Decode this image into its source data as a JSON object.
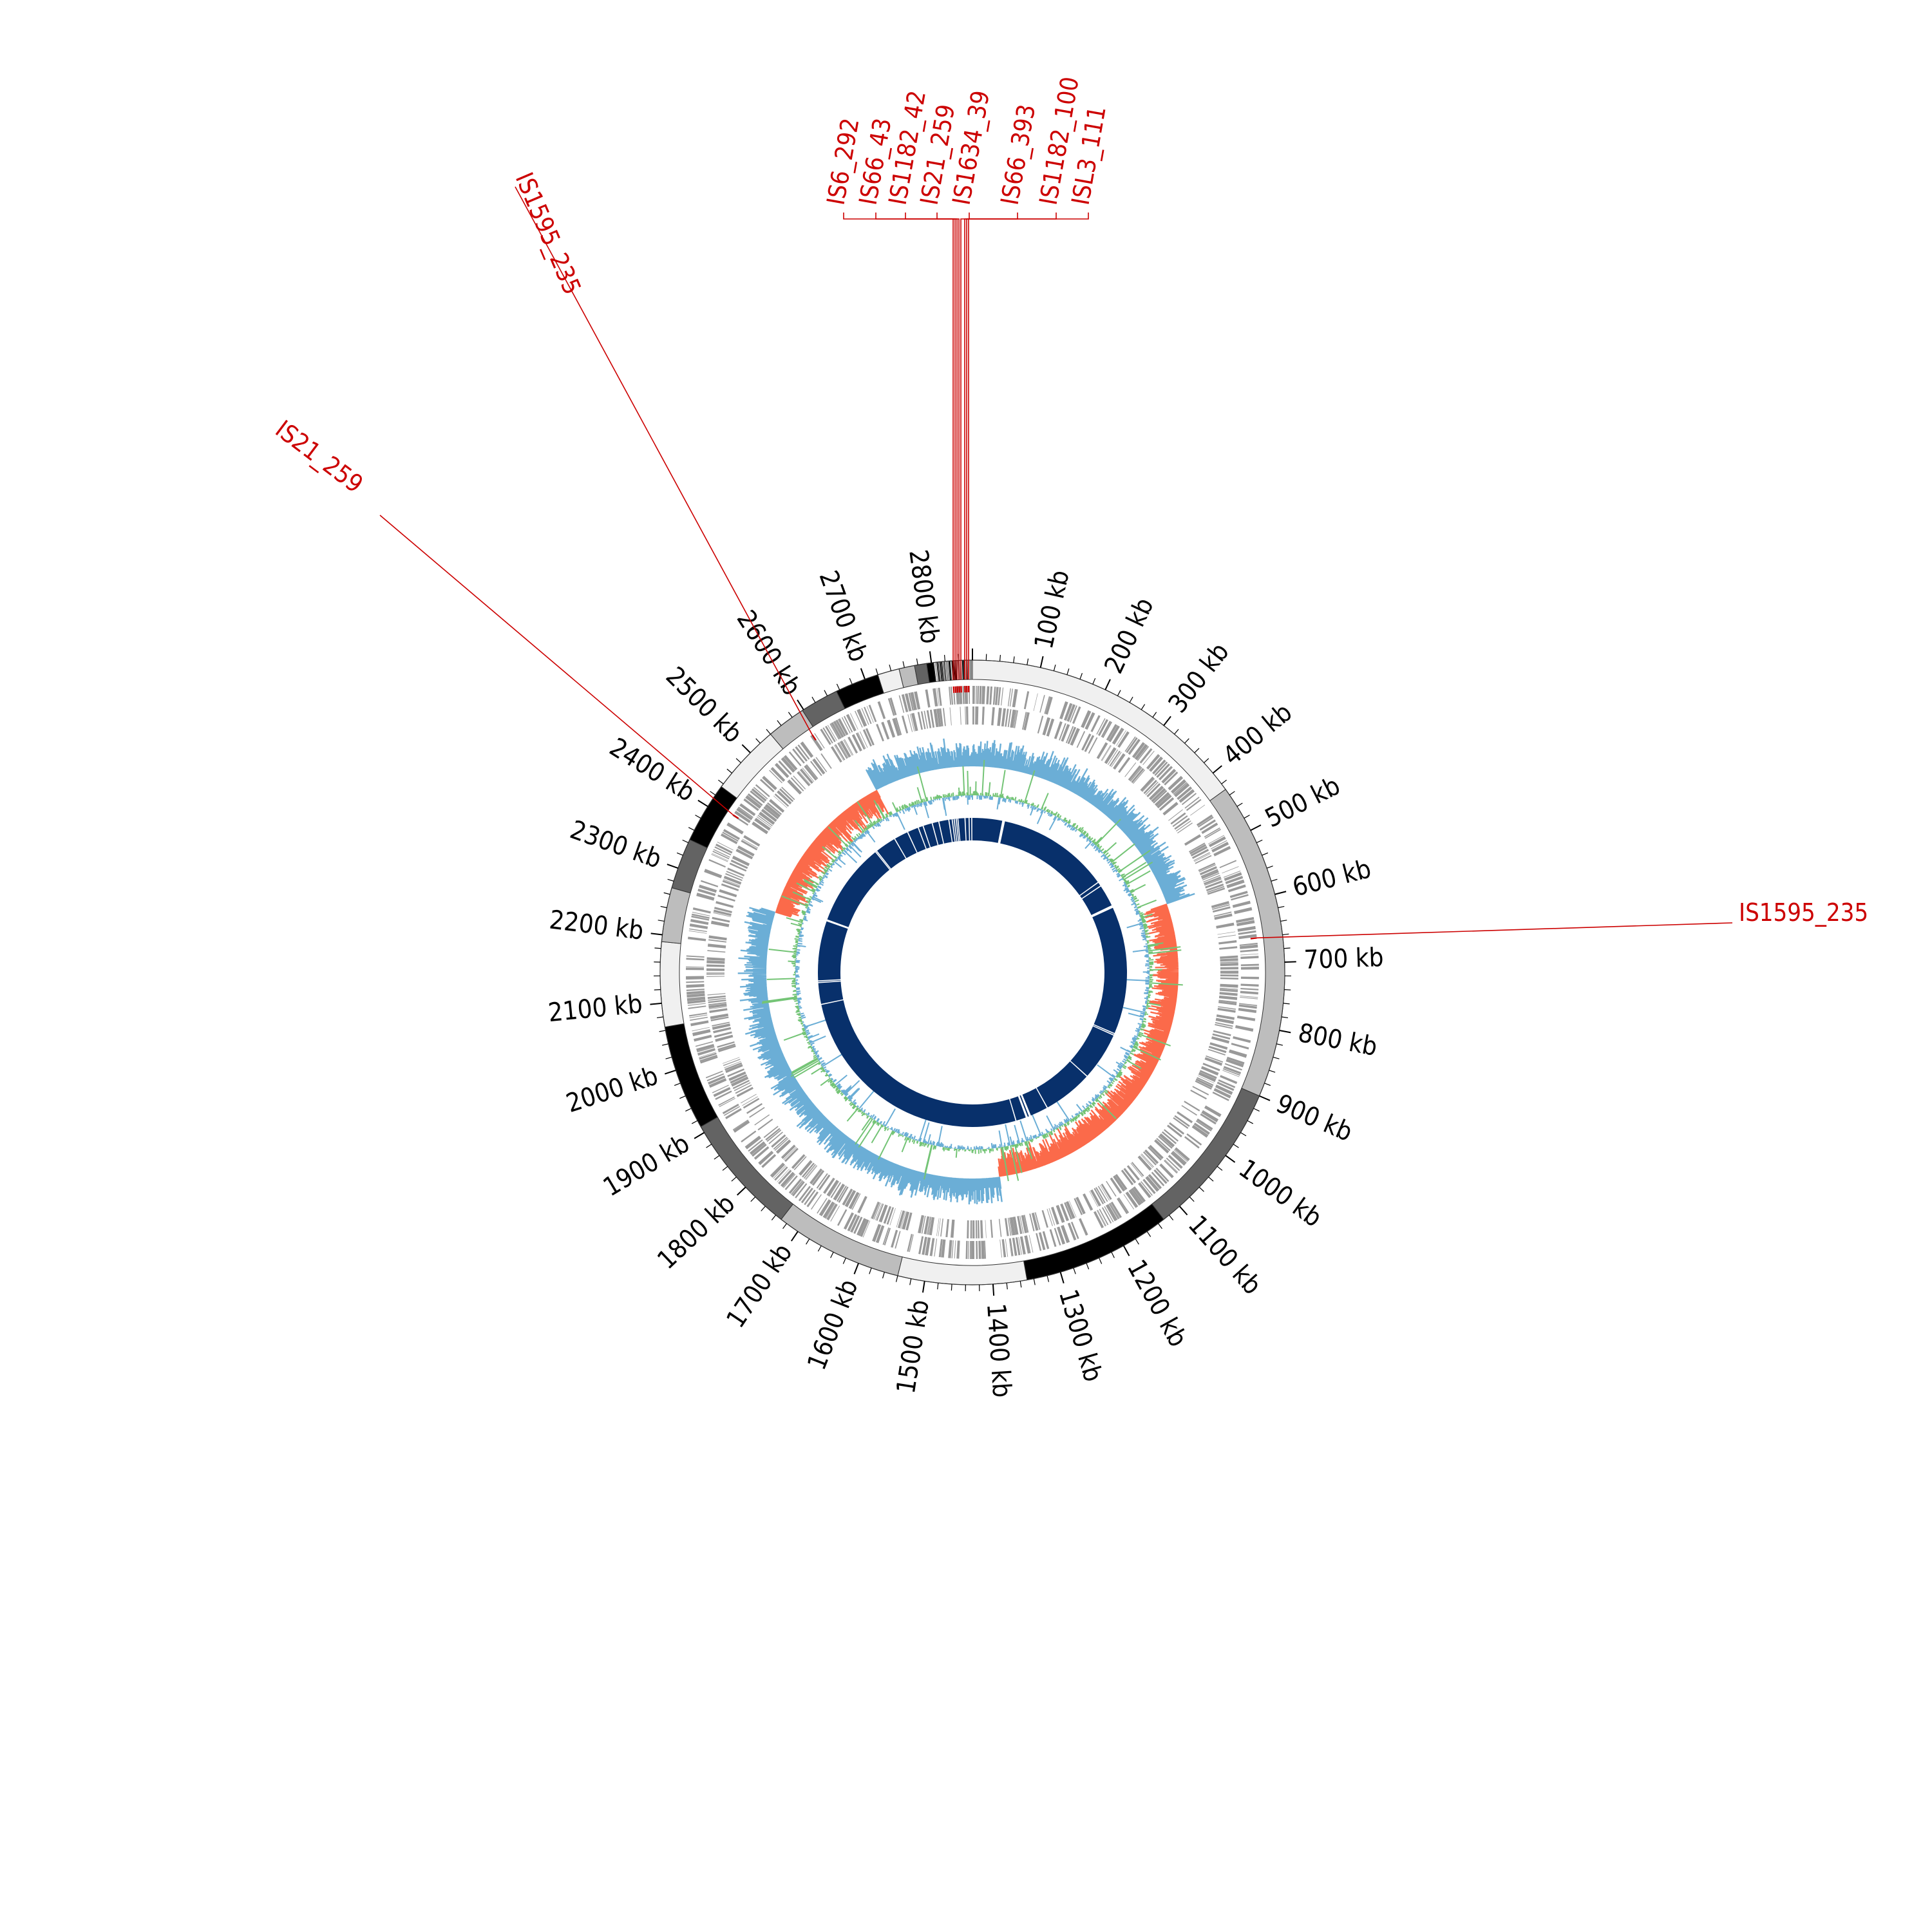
{
  "genome": {
    "length_kb": 2860,
    "tick_step_kb": 100,
    "minor_tick_step_kb": 20,
    "tick_labels": [
      "100 kb",
      "200 kb",
      "300 kb",
      "400 kb",
      "500 kb",
      "600 kb",
      "700 kb",
      "800 kb",
      "900 kb",
      "1000 kb",
      "1100 kb",
      "1200 kb",
      "1300 kb",
      "1400 kb",
      "1500 kb",
      "1600 kb",
      "1700 kb",
      "1800 kb",
      "1900 kb",
      "2000 kb",
      "2100 kb",
      "2200 kb",
      "2300 kb",
      "2400 kb",
      "2500 kb",
      "2600 kb",
      "2700 kb",
      "2800 kb"
    ]
  },
  "contig_ring": {
    "segments": [
      {
        "start": 0,
        "end": 430,
        "color": "#f0f0f0"
      },
      {
        "start": 430,
        "end": 900,
        "color": "#bdbdbd"
      },
      {
        "start": 900,
        "end": 1130,
        "color": "#636363"
      },
      {
        "start": 1130,
        "end": 1350,
        "color": "#000000"
      },
      {
        "start": 1350,
        "end": 1540,
        "color": "#f0f0f0"
      },
      {
        "start": 1540,
        "end": 1730,
        "color": "#bdbdbd"
      },
      {
        "start": 1730,
        "end": 1910,
        "color": "#636363"
      },
      {
        "start": 1910,
        "end": 2065,
        "color": "#000000"
      },
      {
        "start": 2065,
        "end": 2190,
        "color": "#f0f0f0"
      },
      {
        "start": 2190,
        "end": 2270,
        "color": "#bdbdbd"
      },
      {
        "start": 2270,
        "end": 2345,
        "color": "#636363"
      },
      {
        "start": 2345,
        "end": 2435,
        "color": "#000000"
      },
      {
        "start": 2435,
        "end": 2540,
        "color": "#f0f0f0"
      },
      {
        "start": 2540,
        "end": 2598,
        "color": "#bdbdbd"
      },
      {
        "start": 2598,
        "end": 2655,
        "color": "#636363"
      },
      {
        "start": 2655,
        "end": 2720,
        "color": "#000000"
      },
      {
        "start": 2720,
        "end": 2752,
        "color": "#f0f0f0"
      },
      {
        "start": 2752,
        "end": 2775,
        "color": "#bdbdbd"
      },
      {
        "start": 2775,
        "end": 2793,
        "color": "#636363"
      },
      {
        "start": 2793,
        "end": 2803,
        "color": "#000000"
      },
      {
        "start": 2803,
        "end": 2860,
        "color": "#f0f0f0"
      }
    ],
    "dense_region": {
      "start": 2803,
      "end": 2858
    }
  },
  "is_elements": [
    {
      "label": "IS1595_235",
      "pos": 2590
    },
    {
      "label": "IS21_259",
      "pos": 2410
    },
    {
      "label": "IS1595_235",
      "pos": 660
    },
    {
      "label": "IS6_292",
      "pos": 2830
    },
    {
      "label": "IS66_43",
      "pos": 2833
    },
    {
      "label": "IS1182_42",
      "pos": 2836
    },
    {
      "label": "IS21_259",
      "pos": 2839
    },
    {
      "label": "IS1634_39",
      "pos": 2842
    },
    {
      "label": "IS66_393",
      "pos": 2848
    },
    {
      "label": "IS1182_100",
      "pos": 2851
    },
    {
      "label": "ISL3_111",
      "pos": 2854
    }
  ],
  "tracks": {
    "gc_skew": {
      "positive_color": "#6baed6",
      "negative_color": "#fb6a4a"
    },
    "gc_content": {
      "above_color": "#74c476",
      "below_color": "#6baed6"
    },
    "homology_color": "#08306b",
    "homology_gaps": [
      2838,
      2850,
      2858,
      90,
      92,
      95,
      432,
      445,
      512,
      514,
      517,
      900,
      905,
      1050,
      1200,
      1255,
      1258,
      1265,
      1268,
      1300,
      2050,
      2115,
      2120,
      2300,
      2303,
      2552,
      2556,
      2620,
      2663,
      2697,
      2712,
      2740,
      2760,
      2790,
      2800,
      2806,
      2812,
      2817
    ]
  }
}
